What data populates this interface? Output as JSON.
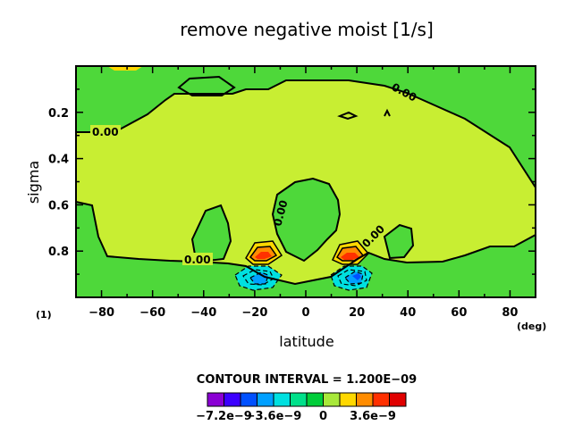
{
  "chart_data": {
    "type": "contour",
    "title": "remove negative moist [1/s]",
    "xlabel": "latitude",
    "xunit": "(deg)",
    "ylabel": "sigma",
    "yunit": "(1)",
    "xlim": [
      -90,
      90
    ],
    "ylim": [
      1.0,
      0.0
    ],
    "xticks": [
      -80,
      -60,
      -40,
      -20,
      0,
      20,
      40,
      60,
      80
    ],
    "xtick_labels": [
      "−80",
      "−60",
      "−40",
      "−20",
      "0",
      "20",
      "40",
      "60",
      "80"
    ],
    "yticks": [
      0.2,
      0.4,
      0.6,
      0.8
    ],
    "ytick_labels": [
      "0.2",
      "0.4",
      "0.6",
      "0.8"
    ],
    "contour_interval_text": "CONTOUR INTERVAL = 1.200E−09",
    "contour_labels": [
      "0.00",
      "0.00",
      "0.00",
      "0.00",
      "0.00"
    ],
    "colorbar": {
      "levels": [
        -7.2e-09,
        -6e-09,
        -4.8e-09,
        -3.6e-09,
        -2.4e-09,
        -1.2e-09,
        0,
        1.2e-09,
        2.4e-09,
        3.6e-09,
        4.8e-09
      ],
      "colors": [
        "#8a00d4",
        "#3c00ff",
        "#0050ff",
        "#00a0ff",
        "#00e0e0",
        "#00e08a",
        "#00cd3a",
        "#a8e83a",
        "#ffd800",
        "#ff8c00",
        "#ff3000",
        "#e00000"
      ],
      "tick_labels": [
        "−7.2e−9",
        "−3.6e−9",
        "0",
        "3.6e−9"
      ]
    },
    "features": [
      {
        "name": "background",
        "level": "near zero (0 to 1.2e-9)",
        "color": "#c8ee32"
      },
      {
        "name": "high-latitude band",
        "level": "slightly negative (-1.2e-9 to 0)",
        "color": "#4ed83a"
      },
      {
        "name": "positive maximum near -18 deg, sigma 0.82",
        "level": "up to about 4.8e-9"
      },
      {
        "name": "positive maximum near 18 deg, sigma 0.82",
        "level": "up to about 4.8e-9"
      },
      {
        "name": "negative minimum near -18 deg, sigma 0.93",
        "level": "down to about -6.0e-9"
      },
      {
        "name": "negative minimum near 20 deg, sigma 0.93",
        "level": "down to about -6.0e-9"
      }
    ]
  }
}
